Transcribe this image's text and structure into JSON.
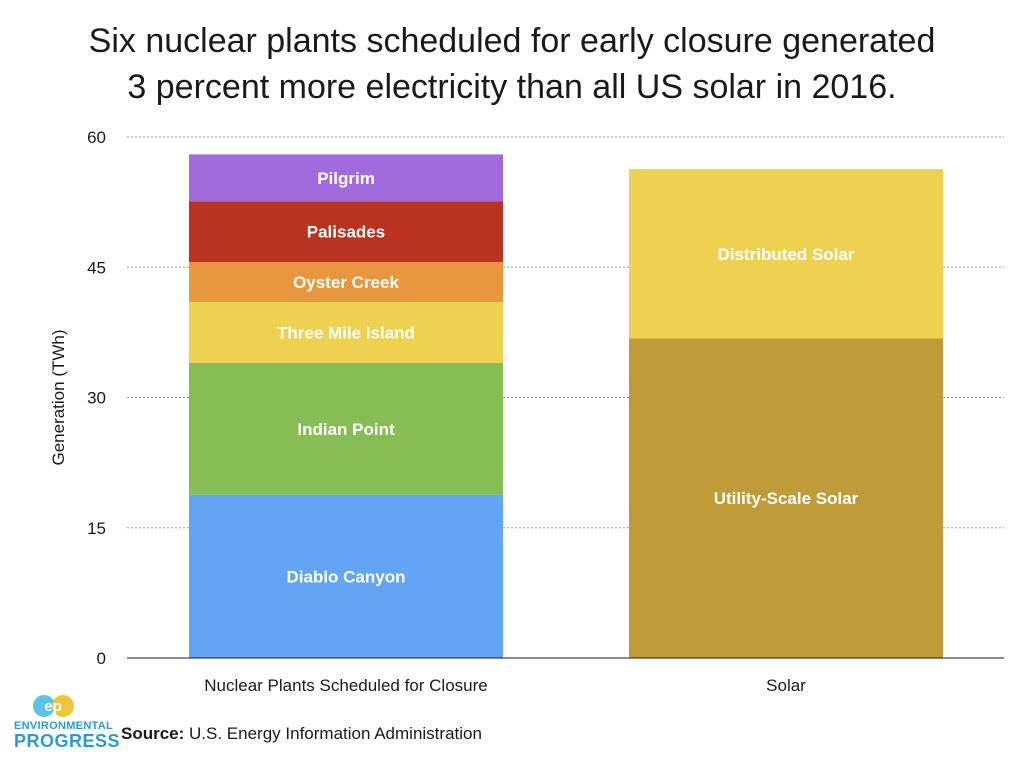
{
  "title_line1": "Six nuclear plants scheduled for early closure generated",
  "title_line2": "3 percent more electricity than all US solar in 2016.",
  "source_label": "Source:",
  "source_text": " U.S. Energy Information Administration",
  "logo": {
    "line1": "ENVIRONMENTAL",
    "line2": "PROGRESS",
    "mark": "ep",
    "color": "#2a9bd0"
  },
  "chart_data": {
    "type": "bar",
    "stacked": true,
    "title": "Six nuclear plants scheduled for early closure generated 3 percent more electricity than all US solar in 2016.",
    "xlabel": "",
    "ylabel": "Generation (TWh)",
    "ylim": [
      0,
      60
    ],
    "yticks": [
      0,
      15,
      30,
      45,
      60
    ],
    "grid": true,
    "categories": [
      "Nuclear Plants Scheduled for Closure",
      "Solar"
    ],
    "series": [
      {
        "name": "Diablo Canyon",
        "color": "#64a4f4",
        "values": [
          18.8,
          0
        ]
      },
      {
        "name": "Indian Point",
        "color": "#86bd55",
        "values": [
          15.2,
          0
        ]
      },
      {
        "name": "Three Mile Island",
        "color": "#efd152",
        "values": [
          7.0,
          0
        ]
      },
      {
        "name": "Oyster Creek",
        "color": "#e8973e",
        "values": [
          4.6,
          0
        ]
      },
      {
        "name": "Palisades",
        "color": "#b93320",
        "values": [
          7.0,
          0
        ]
      },
      {
        "name": "Pilgrim",
        "color": "#a26bdd",
        "values": [
          5.4,
          0
        ]
      },
      {
        "name": "Utility-Scale Solar",
        "color": "#bf9b3a",
        "values": [
          0,
          36.8
        ]
      },
      {
        "name": "Distributed Solar",
        "color": "#efd152",
        "values": [
          0,
          19.5
        ]
      }
    ]
  }
}
